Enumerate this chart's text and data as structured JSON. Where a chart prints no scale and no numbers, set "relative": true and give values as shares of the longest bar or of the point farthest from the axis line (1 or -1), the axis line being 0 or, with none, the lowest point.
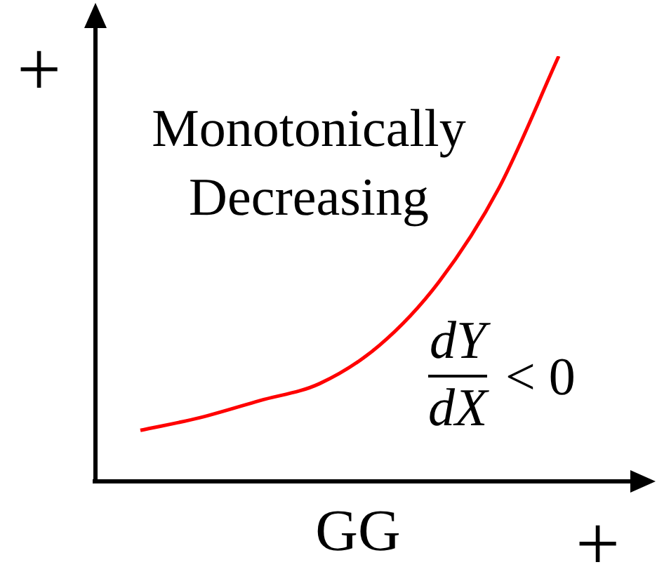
{
  "chart_data": {
    "type": "line",
    "relative": true,
    "xlabel": "GG",
    "categories": [
      null,
      null,
      null,
      null,
      null,
      null,
      null,
      null
    ],
    "series": [
      {
        "color": "#ff0000",
        "values": [
          0.12,
          0.15,
          0.19,
          0.23,
          0.32,
          0.47,
          0.69,
          1
        ]
      }
    ],
    "annotations": [
      "Monotonically Decreasing",
      "dY",
      "dX",
      "< 0",
      "+",
      "+"
    ],
    "legend": false,
    "grid": false,
    "marker": "none",
    "line_style": "solid"
  }
}
